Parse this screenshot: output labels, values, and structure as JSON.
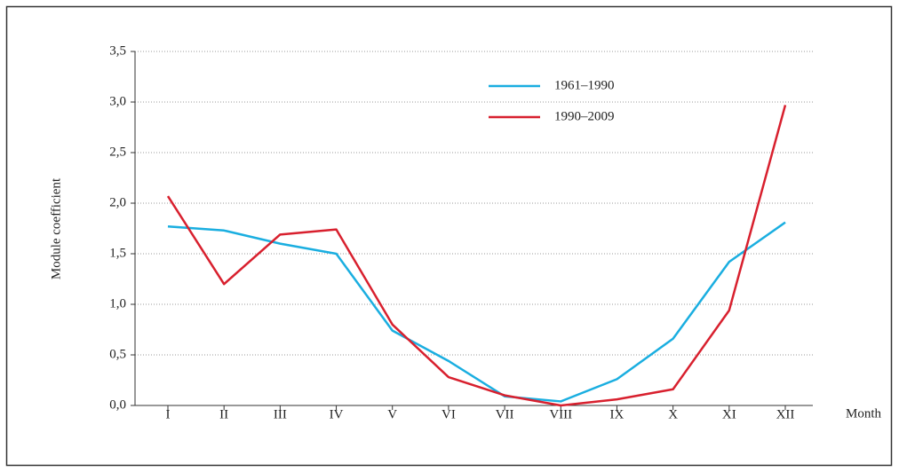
{
  "chart_data": {
    "type": "line",
    "y_label": "Module coefficient",
    "x_label": "Month",
    "categories": [
      "I",
      "II",
      "III",
      "IV",
      "V",
      "VI",
      "VII",
      "VIII",
      "IX",
      "X",
      "XI",
      "XII"
    ],
    "series": [
      {
        "name": "1961–1990",
        "color": "#1aaee0",
        "values": [
          1.77,
          1.73,
          1.6,
          1.5,
          0.74,
          0.44,
          0.09,
          0.04,
          0.26,
          0.66,
          1.42,
          1.81
        ]
      },
      {
        "name": "1990–2009",
        "color": "#d8202e",
        "values": [
          2.07,
          1.2,
          1.69,
          1.74,
          0.8,
          0.28,
          0.1,
          0.0,
          0.06,
          0.16,
          0.94,
          2.97
        ]
      }
    ],
    "ylim": [
      0,
      3.5
    ],
    "yticks": [
      {
        "value": 0,
        "label": "0,0"
      },
      {
        "value": 0.5,
        "label": "0,5"
      },
      {
        "value": 1,
        "label": "1,0"
      },
      {
        "value": 1.5,
        "label": "1,5"
      },
      {
        "value": 2,
        "label": "2,0"
      },
      {
        "value": 2.5,
        "label": "2,5"
      },
      {
        "value": 3,
        "label": "3,0"
      },
      {
        "value": 3.5,
        "label": "3,5"
      }
    ],
    "grid": true,
    "legend": "upper center"
  }
}
